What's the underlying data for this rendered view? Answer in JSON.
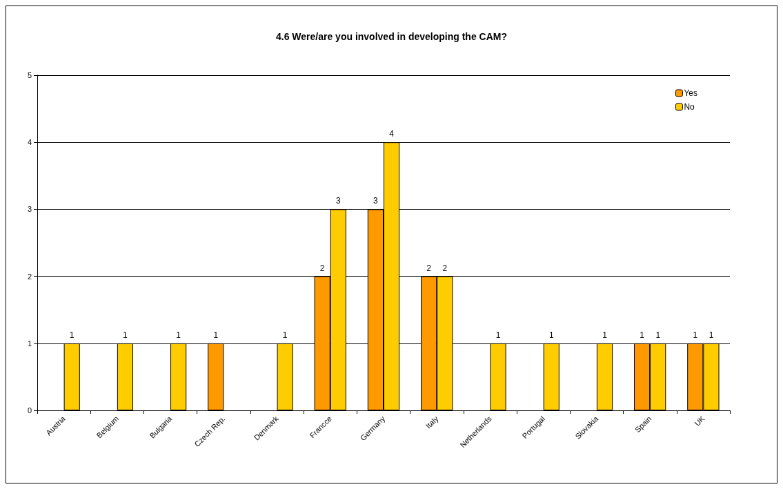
{
  "chart_data": {
    "type": "bar",
    "title": "4.6 Were/are you involved in developing the CAM?",
    "categories": [
      "Austria",
      "Belgium",
      "Bulgaria",
      "Czech Rep.",
      "Denmark",
      "Francce",
      "Germany",
      "Italy",
      "Netherlands",
      "Portugal",
      "Slovakia",
      "Spain",
      "UK"
    ],
    "series": [
      {
        "name": "Yes",
        "color": "#ff9900",
        "values": [
          null,
          null,
          null,
          1,
          null,
          2,
          3,
          2,
          null,
          null,
          null,
          1,
          1
        ]
      },
      {
        "name": "No",
        "color": "#ffcc00",
        "values": [
          1,
          1,
          1,
          null,
          1,
          3,
          4,
          2,
          1,
          1,
          1,
          1,
          1
        ]
      }
    ],
    "ylim": [
      0,
      5
    ],
    "yticks": [
      0,
      1,
      2,
      3,
      4,
      5
    ],
    "grid": "y",
    "legend": "top right",
    "data_labels": true
  }
}
